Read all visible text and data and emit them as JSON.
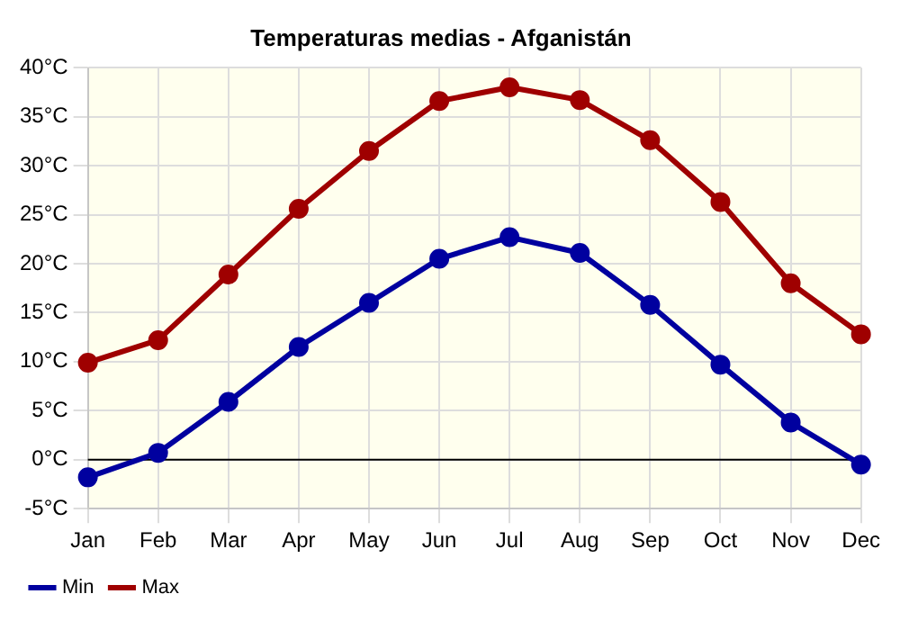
{
  "chart_data": {
    "type": "line",
    "title": "Temperaturas medias - Afganistán",
    "categories": [
      "Jan",
      "Feb",
      "Mar",
      "Apr",
      "May",
      "Jun",
      "Jul",
      "Aug",
      "Sep",
      "Oct",
      "Nov",
      "Dec"
    ],
    "series": [
      {
        "name": "Min",
        "color": "#00009f",
        "values": [
          -1.8,
          0.7,
          5.9,
          11.5,
          16.0,
          20.5,
          22.7,
          21.1,
          15.8,
          9.7,
          3.8,
          -0.5
        ]
      },
      {
        "name": "Max",
        "color": "#9f0000",
        "values": [
          9.9,
          12.2,
          18.9,
          25.6,
          31.5,
          36.6,
          38.0,
          36.7,
          32.6,
          26.3,
          18.0,
          12.8
        ]
      }
    ],
    "ylim": [
      -5,
      40
    ],
    "yticks": [
      {
        "value": -5,
        "label": "-5°C"
      },
      {
        "value": 0,
        "label": "0°C"
      },
      {
        "value": 5,
        "label": "5°C"
      },
      {
        "value": 10,
        "label": "10°C"
      },
      {
        "value": 15,
        "label": "15°C"
      },
      {
        "value": 20,
        "label": "20°C"
      },
      {
        "value": 25,
        "label": "25°C"
      },
      {
        "value": 30,
        "label": "30°C"
      },
      {
        "value": 35,
        "label": "35°C"
      },
      {
        "value": 40,
        "label": "40°C"
      }
    ],
    "ref_lines": [
      {
        "axis": "y",
        "value": 0,
        "color": "#000000"
      }
    ],
    "grid": true,
    "legend": "bottom left",
    "marker": "circle",
    "line_style": "solid"
  }
}
